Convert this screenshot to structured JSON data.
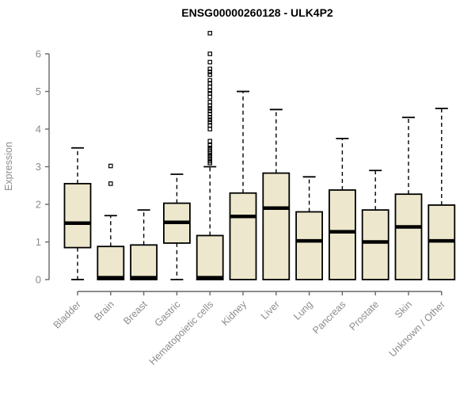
{
  "title": "ENSG00000260128 - ULK4P2",
  "chart_data": {
    "type": "boxplot",
    "title": "ENSG00000260128 - ULK4P2",
    "xlabel": "",
    "ylabel": "Expression",
    "ylim": [
      0,
      6.6
    ],
    "yticks": [
      0,
      1,
      2,
      3,
      4,
      5,
      6
    ],
    "grid": false,
    "legend": "none",
    "categories": [
      "Bladder",
      "Brain",
      "Breast",
      "Gastric",
      "Hematopoietic cells",
      "Kidney",
      "Liver",
      "Lung",
      "Pancreas",
      "Prostate",
      "Skin",
      "Unknown / Other"
    ],
    "boxes": [
      {
        "category": "Bladder",
        "low": 0,
        "q1": 0.85,
        "median": 1.5,
        "q3": 2.55,
        "high": 3.5,
        "outliers": []
      },
      {
        "category": "Brain",
        "low": 0,
        "q1": 0.0,
        "median": 0.05,
        "q3": 0.88,
        "high": 1.7,
        "outliers": [
          2.55,
          3.02
        ]
      },
      {
        "category": "Breast",
        "low": 0,
        "q1": 0.0,
        "median": 0.05,
        "q3": 0.92,
        "high": 1.85,
        "outliers": []
      },
      {
        "category": "Gastric",
        "low": 0,
        "q1": 0.97,
        "median": 1.52,
        "q3": 2.03,
        "high": 2.8,
        "outliers": []
      },
      {
        "category": "Hematopoietic cells",
        "low": 0,
        "q1": 0.0,
        "median": 0.05,
        "q3": 1.17,
        "high": 3.0,
        "outliers": [
          6.55,
          6.0,
          5.78,
          5.6,
          5.52,
          5.45,
          5.3,
          5.22,
          5.12,
          5.02,
          4.95,
          4.85,
          4.72,
          4.62,
          4.55,
          4.48,
          4.4,
          4.32,
          4.25,
          4.18,
          4.1,
          4.0,
          3.68,
          3.57,
          3.5,
          3.45,
          3.4,
          3.35,
          3.28,
          3.22,
          3.15,
          3.1
        ]
      },
      {
        "category": "Kidney",
        "low": 0,
        "q1": 0.0,
        "median": 1.68,
        "q3": 2.3,
        "high": 5.0,
        "outliers": []
      },
      {
        "category": "Liver",
        "low": 0,
        "q1": 0.0,
        "median": 1.9,
        "q3": 2.83,
        "high": 4.52,
        "outliers": []
      },
      {
        "category": "Lung",
        "low": 0,
        "q1": 0.0,
        "median": 1.03,
        "q3": 1.8,
        "high": 2.73,
        "outliers": []
      },
      {
        "category": "Pancreas",
        "low": 0,
        "q1": 0.0,
        "median": 1.27,
        "q3": 2.38,
        "high": 3.75,
        "outliers": []
      },
      {
        "category": "Prostate",
        "low": 0,
        "q1": 0.0,
        "median": 1.0,
        "q3": 1.85,
        "high": 2.9,
        "outliers": []
      },
      {
        "category": "Skin",
        "low": 0,
        "q1": 0.0,
        "median": 1.4,
        "q3": 2.27,
        "high": 4.31,
        "outliers": []
      },
      {
        "category": "Unknown / Other",
        "low": 0,
        "q1": 0.0,
        "median": 1.03,
        "q3": 1.98,
        "high": 4.55,
        "outliers": []
      }
    ],
    "colors": {
      "box_fill": "#EDE8CD",
      "box_stroke": "#000000",
      "median": "#000000",
      "whisker": "#000000",
      "outlier_stroke": "#000000",
      "axis_line": "#666666",
      "axis_text": "#8C8C8C",
      "title_text": "#000000"
    }
  }
}
